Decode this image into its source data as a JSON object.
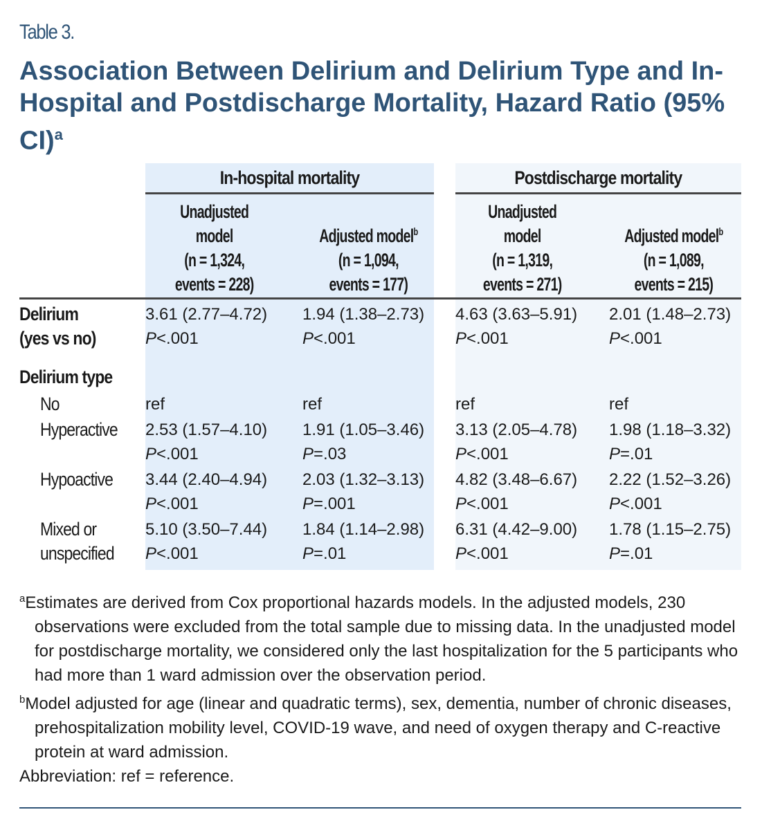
{
  "table_label": "Table 3.",
  "title": "Association Between Delirium and Delirium Type and In-Hospital and Postdischarge Mortality, Hazard Ratio (95% CI)",
  "title_sup": "a",
  "groups": [
    "In-hospital mortality",
    "Postdischarge mortality"
  ],
  "columns": [
    {
      "l1": "Unadjusted",
      "l2": "model",
      "l3": "(n = 1,324,",
      "l4": "events = 228)",
      "sup": ""
    },
    {
      "l1": "",
      "l2": "Adjusted model",
      "l3": "(n = 1,094,",
      "l4": "events = 177)",
      "sup": "b"
    },
    {
      "l1": "Unadjusted",
      "l2": "model",
      "l3": "(n = 1,319,",
      "l4": "events = 271)",
      "sup": ""
    },
    {
      "l1": "",
      "l2": "Adjusted model",
      "l3": "(n = 1,089,",
      "l4": "events = 215)",
      "sup": "b"
    }
  ],
  "rows": {
    "delirium": {
      "l1": "Delirium",
      "l2": "(yes vs no)",
      "v": [
        "3.61 (2.77–4.72)",
        "1.94 (1.38–2.73)",
        "4.63 (3.63–5.91)",
        "2.01 (1.48–2.73)"
      ],
      "p": [
        "<.001",
        "<.001",
        "<.001",
        "<.001"
      ]
    },
    "type_heading": "Delirium type",
    "no": {
      "label": "No",
      "v": [
        "ref",
        "ref",
        "ref",
        "ref"
      ]
    },
    "hyper": {
      "label": "Hyperactive",
      "v": [
        "2.53 (1.57–4.10)",
        "1.91 (1.05–3.46)",
        "3.13 (2.05–4.78)",
        "1.98 (1.18–3.32)"
      ],
      "p": [
        "<.001",
        "=.03",
        "<.001",
        "=.01"
      ]
    },
    "hypo": {
      "label": "Hypoactive",
      "v": [
        "3.44 (2.40–4.94)",
        "2.03 (1.32–3.13)",
        "4.82 (3.48–6.67)",
        "2.22 (1.52–3.26)"
      ],
      "p": [
        "<.001",
        "=.001",
        "<.001",
        "<.001"
      ]
    },
    "mixed": {
      "l1": "Mixed or",
      "l2": "unspecified",
      "v": [
        "5.10 (3.50–7.44)",
        "1.84 (1.14–2.98)",
        "6.31 (4.42–9.00)",
        "1.78 (1.15–2.75)"
      ],
      "p": [
        "<.001",
        "=.01",
        "<.001",
        "=.01"
      ]
    }
  },
  "p_symbol": "P",
  "notes": {
    "a_sup": "a",
    "a": "Estimates are derived from Cox proportional hazards models. In the adjusted models, 230 observations were excluded from the total sample due to missing data. In the unadjusted model for postdischarge mortality, we considered only the last hospitalization for the 5 participants who had more than 1 ward admission over the observation period.",
    "b_sup": "b",
    "b": "Model adjusted for age (linear and quadratic terms), sex, dementia, number of chronic diseases, prehospitalization mobility level, COVID-19 wave, and need of oxygen therapy and C-reactive protein at ward admission.",
    "abbr": "Abbreviation: ref = reference."
  },
  "colors": {
    "title": "#2f5477",
    "shade_inhospital": "#e3eefa",
    "shade_postdischarge": "#f1f6fb"
  }
}
